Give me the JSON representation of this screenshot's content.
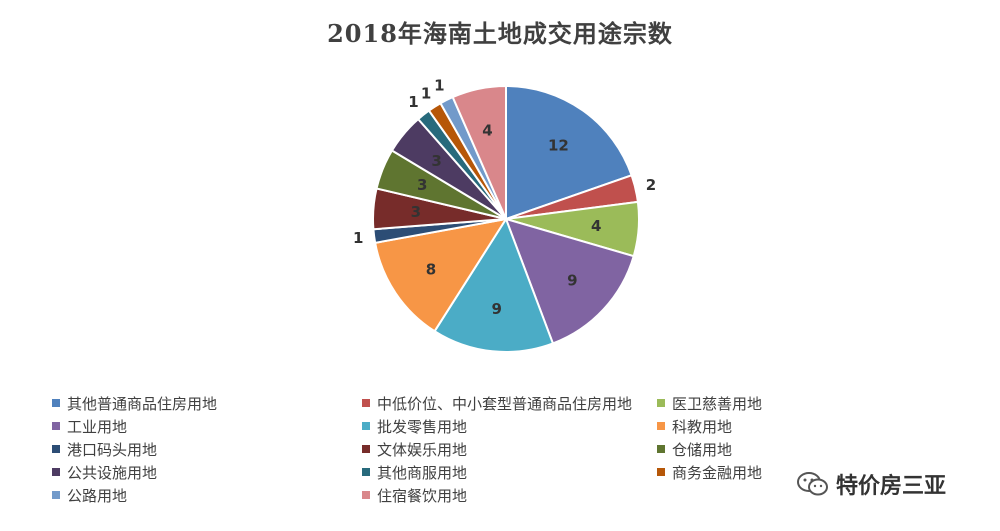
{
  "chart_data": {
    "type": "pie",
    "title": "2018年海南土地成交用途宗数",
    "legend_position": "bottom",
    "slices": [
      {
        "name": "其他普通商品住房用地",
        "value": 12,
        "color": "#4f81bd"
      },
      {
        "name": "中低价位、中小套型普通商品住房用地",
        "value": 2,
        "color": "#c0504d"
      },
      {
        "name": "医卫慈善用地",
        "value": 4,
        "color": "#9bbb59"
      },
      {
        "name": "工业用地",
        "value": 9,
        "color": "#8064a2"
      },
      {
        "name": "批发零售用地",
        "value": 9,
        "color": "#4bacc6"
      },
      {
        "name": "科教用地",
        "value": 8,
        "color": "#f79646"
      },
      {
        "name": "港口码头用地",
        "value": 1,
        "color": "#2c4d75"
      },
      {
        "name": "文体娱乐用地",
        "value": 3,
        "color": "#772c2a"
      },
      {
        "name": "仓储用地",
        "value": 3,
        "color": "#5f7530"
      },
      {
        "name": "公共设施用地",
        "value": 3,
        "color": "#4d3b62"
      },
      {
        "name": "其他商服用地",
        "value": 1,
        "color": "#276a7c"
      },
      {
        "name": "商务金融用地",
        "value": 1,
        "color": "#b65708"
      },
      {
        "name": "公路用地",
        "value": 1,
        "color": "#729aca"
      },
      {
        "name": "住宿餐饮用地",
        "value": 4,
        "color": "#d9878b"
      }
    ]
  },
  "watermark": {
    "text": "特价房三亚",
    "icon": "wechat-icon"
  }
}
